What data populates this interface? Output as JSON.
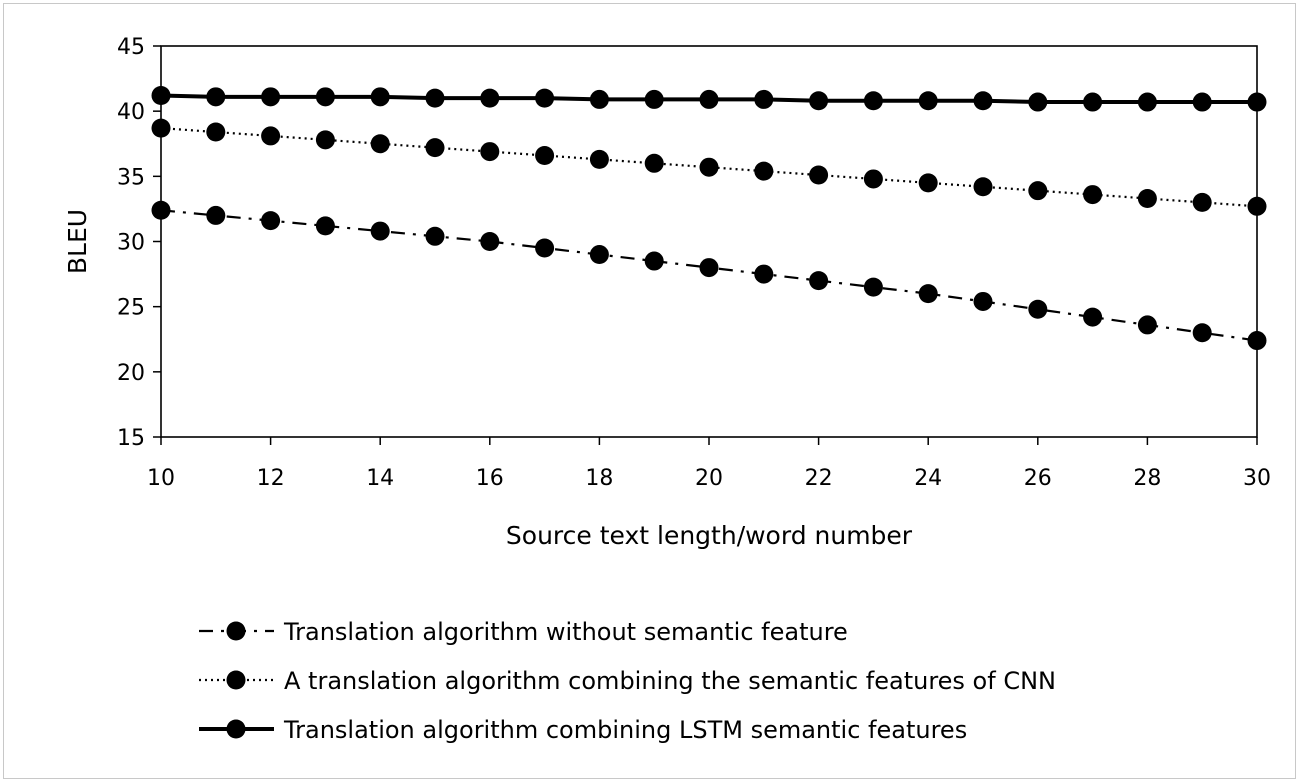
{
  "chart_data": {
    "type": "line",
    "xlabel": "Source text length/word number",
    "ylabel": "BLEU",
    "xlim": [
      10,
      30
    ],
    "ylim": [
      15,
      45
    ],
    "x_ticks": [
      10,
      12,
      14,
      16,
      18,
      20,
      22,
      24,
      26,
      28,
      30
    ],
    "y_ticks": [
      15,
      20,
      25,
      30,
      35,
      40,
      45
    ],
    "grid": false,
    "legend_position": "bottom",
    "x": [
      10,
      11,
      12,
      13,
      14,
      15,
      16,
      17,
      18,
      19,
      20,
      21,
      22,
      23,
      24,
      25,
      26,
      27,
      28,
      29,
      30
    ],
    "series": [
      {
        "name": "Translation algorithm without semantic feature",
        "line_style": "dash-dot",
        "color": "#000000",
        "values": [
          32.4,
          32.0,
          31.6,
          31.2,
          30.8,
          30.4,
          30.0,
          29.5,
          29.0,
          28.5,
          28.0,
          27.5,
          27.0,
          26.5,
          26.0,
          25.4,
          24.8,
          24.2,
          23.6,
          23.0,
          22.4
        ]
      },
      {
        "name": "A translation algorithm combining the semantic features of CNN",
        "line_style": "dotted",
        "color": "#000000",
        "values": [
          38.7,
          38.4,
          38.1,
          37.8,
          37.5,
          37.2,
          36.9,
          36.6,
          36.3,
          36.0,
          35.7,
          35.4,
          35.1,
          34.8,
          34.5,
          34.2,
          33.9,
          33.6,
          33.3,
          33.0,
          32.7
        ]
      },
      {
        "name": "Translation algorithm combining LSTM semantic features",
        "line_style": "solid",
        "color": "#000000",
        "values": [
          41.2,
          41.1,
          41.1,
          41.1,
          41.1,
          41.0,
          41.0,
          41.0,
          40.9,
          40.9,
          40.9,
          40.9,
          40.8,
          40.8,
          40.8,
          40.8,
          40.7,
          40.7,
          40.7,
          40.7,
          40.7
        ]
      }
    ]
  }
}
